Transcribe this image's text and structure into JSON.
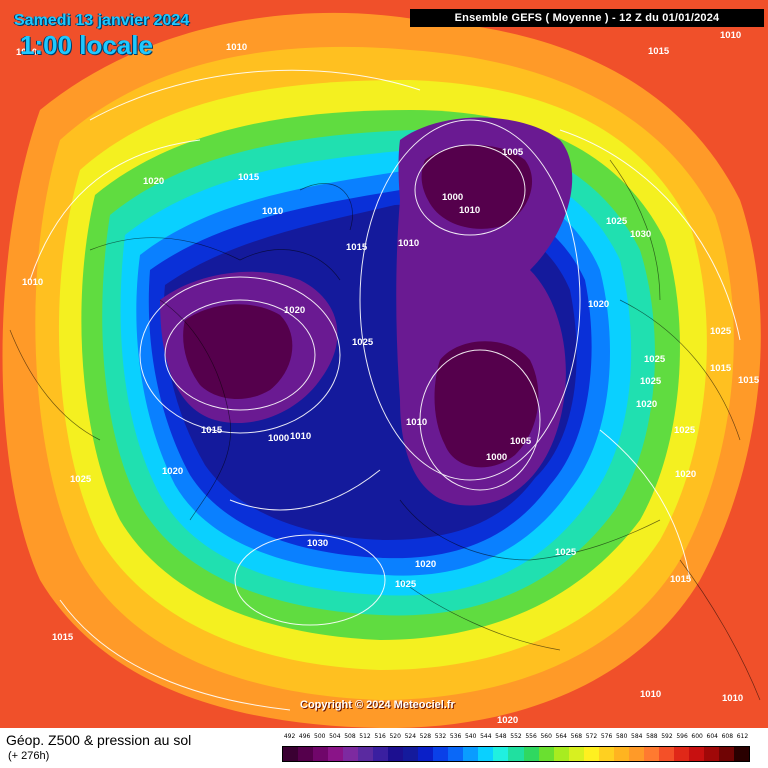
{
  "header": {
    "date": "Samedi 13 janvier 2024",
    "time_label": "1:00 locale",
    "run_info": "Ensemble GEFS  ( Moyenne )  -  12 Z du 01/01/2024"
  },
  "footer": {
    "title": "Géop. Z500 & pression au sol",
    "lead_time": "(+ 276h)",
    "copyright": "Copyright © 2024 Meteociel.fr"
  },
  "colorbar": {
    "labels": [
      "492",
      "496",
      "500",
      "504",
      "508",
      "512",
      "516",
      "520",
      "524",
      "528",
      "532",
      "536",
      "540",
      "544",
      "548",
      "552",
      "556",
      "560",
      "564",
      "568",
      "572",
      "576",
      "580",
      "584",
      "588",
      "592",
      "596",
      "600",
      "604",
      "608",
      "612"
    ],
    "colors": [
      "#3a0032",
      "#55004c",
      "#70066a",
      "#8a1488",
      "#7d2aa0",
      "#5a2aa0",
      "#3a1fa0",
      "#1c0f90",
      "#141a9c",
      "#0a1fc8",
      "#0a40e8",
      "#0a68f8",
      "#0a9cff",
      "#0ad0ff",
      "#20f0e0",
      "#20e0a0",
      "#30d860",
      "#6ae030",
      "#a8ec20",
      "#d8f020",
      "#fff020",
      "#ffd020",
      "#ffb420",
      "#ff9a28",
      "#ff7a30",
      "#f45028",
      "#e02818",
      "#c81010",
      "#a00808",
      "#700404",
      "#2a0000"
    ]
  },
  "map": {
    "accent_colors": {
      "ocean_warm": "#f0502a",
      "orange": "#ff9a28",
      "yellow": "#fff020",
      "green": "#40dc50",
      "cyan": "#0ad0ff",
      "blue": "#0a40e8",
      "navy": "#141a9c",
      "purple": "#7a1a90",
      "dark_purple": "#55004c"
    },
    "isobar_labels": [
      {
        "text": "1010"
      },
      {
        "text": "1015"
      },
      {
        "text": "1010"
      },
      {
        "text": "1020"
      },
      {
        "text": "1015"
      },
      {
        "text": "1010"
      },
      {
        "text": "1015"
      },
      {
        "text": "1010"
      },
      {
        "text": "1005"
      },
      {
        "text": "1000"
      },
      {
        "text": "1010"
      },
      {
        "text": "1025"
      },
      {
        "text": "1030"
      },
      {
        "text": "1010"
      },
      {
        "text": "1020"
      },
      {
        "text": "1025"
      },
      {
        "text": "1020"
      },
      {
        "text": "1025"
      },
      {
        "text": "1025"
      },
      {
        "text": "1015"
      },
      {
        "text": "1015"
      },
      {
        "text": "1025"
      },
      {
        "text": "1015"
      },
      {
        "text": "1000"
      },
      {
        "text": "1010"
      },
      {
        "text": "1020"
      },
      {
        "text": "1010"
      },
      {
        "text": "1005"
      },
      {
        "text": "1000"
      },
      {
        "text": "1020"
      },
      {
        "text": "1025"
      },
      {
        "text": "1020"
      },
      {
        "text": "1025"
      },
      {
        "text": "1030"
      },
      {
        "text": "1025"
      },
      {
        "text": "1020"
      },
      {
        "text": "1025"
      },
      {
        "text": "1015"
      },
      {
        "text": "1015"
      },
      {
        "text": "1010"
      },
      {
        "text": "1010"
      },
      {
        "text": "1020"
      },
      {
        "text": "1010"
      }
    ]
  }
}
